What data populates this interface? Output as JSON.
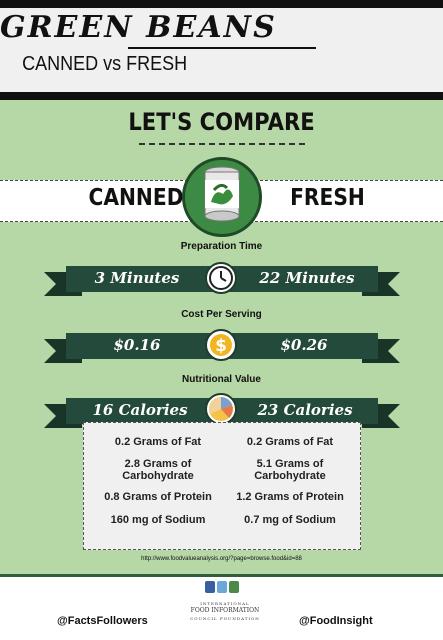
{
  "header": {
    "title": "GREEN BEANS",
    "subtitle": "CANNED vs FRESH"
  },
  "compare_title": "LET'S COMPARE",
  "columns": {
    "left": "CANNED",
    "right": "FRESH"
  },
  "sections": {
    "prep": {
      "label": "Preparation Time",
      "left": "3 Minutes",
      "right": "22 Minutes"
    },
    "cost": {
      "label": "Cost Per Serving",
      "left": "$0.16",
      "right": "$0.26"
    },
    "nutrition": {
      "label": "Nutritional Value",
      "left": "16 Calories",
      "right": "23 Calories"
    }
  },
  "nutrients": {
    "canned": [
      "0.2 Grams of Fat",
      "2.8 Grams of Carbohydrate",
      "0.8 Grams of Protein",
      "160 mg of Sodium"
    ],
    "fresh": [
      "0.2 Grams of Fat",
      "5.1 Grams of Carbohydrate",
      "1.2 Grams of Protein",
      "0.7 mg of Sodium"
    ]
  },
  "source_url": "http://www.foodvalueanalysis.org/?page=browse.food&id=88",
  "footer": {
    "left_handle": "@FactsFollowers",
    "right_handle": "@FoodInsight",
    "logo": {
      "line1": "INTERNATIONAL",
      "line2": "FOOD INFORMATION",
      "line3": "COUNCIL FOUNDATION"
    }
  },
  "colors": {
    "ribbon": "#234a3b",
    "ribbon_dark": "#183528",
    "background": "#b6d7a6",
    "can_green": "#3d8a45"
  },
  "icons": {
    "prep": "clock-icon",
    "cost": "dollar-icon",
    "nutrition": "pie-chart-icon",
    "hero": "can-icon"
  }
}
